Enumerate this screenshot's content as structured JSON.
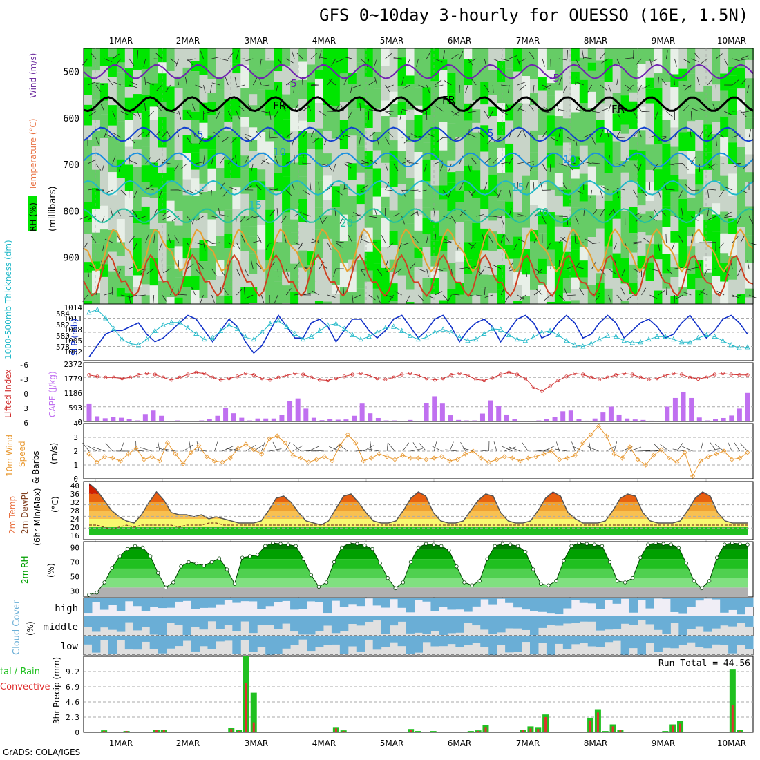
{
  "title": "GFS 0~10day 3-hourly for OUESSO (16E, 1.5N)",
  "credit": "GrADS: COLA/IGES",
  "colors": {
    "rh_green": "#00e600",
    "rh_mid": "#66cc66",
    "rh_light": "#c8d4c8",
    "slp": "#1030c8",
    "thickness": "#20b8c8",
    "lifted_index": "#d03030",
    "cape": "#c070f0",
    "wind10": "#e89830",
    "rh2m": "#00a000",
    "cloud": "#6aaed6",
    "precip_total": "#20c020",
    "precip_conv": "#e03030"
  },
  "chart_data": [
    {
      "type": "heatmap",
      "panel": "cross-section",
      "title": "GFS 0~10day 3-hourly for OUESSO (16E, 1.5N)",
      "ylabel_parts": [
        "RH (%)",
        "Temperature (°C)",
        "Wind (m/s)",
        "(millibars)"
      ],
      "x_labels": [
        "1MAR",
        "2MAR",
        "3MAR",
        "4MAR",
        "5MAR",
        "6MAR",
        "7MAR",
        "8MAR",
        "9MAR",
        "10MAR"
      ],
      "y_ticks": [
        500,
        600,
        700,
        800,
        900
      ],
      "ylim": [
        1000,
        450
      ],
      "isotherm_labels": [
        "-5",
        "-5",
        "FR",
        "FR",
        "FR",
        "5",
        "5",
        "10",
        "10",
        "15",
        "15",
        "20",
        "20"
      ],
      "isotherms": [
        {
          "label": "-5",
          "level": 500,
          "color": "#7020b0"
        },
        {
          "label": "FR",
          "level": 570,
          "color": "#000000"
        },
        {
          "label": "5",
          "level": 635,
          "color": "#1040d0"
        },
        {
          "label": "10",
          "level": 690,
          "color": "#1890e0"
        },
        {
          "label": "15",
          "level": 750,
          "color": "#20b8c8"
        },
        {
          "label": "20",
          "level": 810,
          "color": "#20c0a0"
        },
        {
          "label": "25",
          "level": 880,
          "color": "#e8a030"
        },
        {
          "label": "30",
          "level": 950,
          "color": "#d04020"
        }
      ]
    },
    {
      "type": "line",
      "panel": "slp-thickness",
      "ylabel_left": "1000-500mb Thickness (dm)",
      "ylabel_right": "SLP (mb)",
      "thickness_ticks": [
        "584",
        "582",
        "580",
        "578"
      ],
      "slp_ticks": [
        "1014",
        "1011",
        "1008",
        "1005",
        "1002"
      ],
      "slp": [
        1001,
        1004,
        1007,
        1008,
        1008,
        1009,
        1010,
        1007,
        1005,
        1006,
        1008,
        1010,
        1012,
        1011,
        1008,
        1005,
        1008,
        1011,
        1009,
        1005,
        1002,
        1004,
        1008,
        1012,
        1009,
        1006,
        1006,
        1010,
        1011,
        1009,
        1005,
        1008,
        1011,
        1011,
        1008,
        1006,
        1008,
        1011,
        1012,
        1009,
        1006,
        1008,
        1011,
        1012,
        1009,
        1005,
        1008,
        1010,
        1011,
        1009,
        1005,
        1008,
        1011,
        1012,
        1010,
        1006,
        1007,
        1010,
        1012,
        1010,
        1006,
        1007,
        1010,
        1012,
        1010,
        1006,
        1008,
        1010,
        1011,
        1009,
        1006,
        1007,
        1010,
        1012,
        1009,
        1006,
        1008,
        1011,
        1012,
        1010,
        1007
      ],
      "thickness": [
        583.8,
        584.2,
        583.0,
        581.5,
        580.0,
        579.4,
        579.2,
        580.0,
        581.2,
        582.0,
        582.4,
        582.4,
        581.6,
        580.8,
        580.0,
        580.2,
        581.2,
        582.0,
        581.5,
        580.3,
        580.0,
        581.0,
        582.2,
        582.6,
        581.8,
        580.8,
        580.0,
        580.4,
        581.2,
        582.0,
        582.2,
        581.5,
        580.6,
        580.0,
        580.4,
        581.0,
        581.6,
        581.8,
        581.2,
        580.5,
        580.0,
        580.3,
        581.0,
        581.4,
        581.0,
        580.3,
        579.8,
        580.0,
        580.8,
        581.5,
        581.4,
        580.6,
        580.0,
        579.8,
        580.3,
        581.0,
        581.2,
        580.6,
        579.8,
        579.2,
        579.0,
        579.4,
        580.0,
        580.5,
        580.4,
        579.8,
        579.5,
        579.6,
        580.0,
        580.4,
        580.4,
        580.0,
        579.6,
        579.6,
        580.2,
        580.6,
        580.4,
        579.8,
        579.2,
        578.8,
        578.9
      ]
    },
    {
      "type": "bar",
      "panel": "lifted-index-cape",
      "ylabel_left": "Lifted Index",
      "ylabel_right": "CAPE (J/kg)",
      "li_ticks": [
        "-6",
        "-3",
        "0",
        "3",
        "6"
      ],
      "cape_ticks": [
        "2372",
        "1779",
        "1186",
        "593",
        "0"
      ],
      "lifted_index": [
        -3.5,
        -3.2,
        -3.0,
        -3.0,
        -2.8,
        -3.0,
        -3.5,
        -3.8,
        -3.6,
        -3.0,
        -2.5,
        -3.0,
        -3.6,
        -4.0,
        -3.8,
        -3.0,
        -2.5,
        -2.8,
        -3.2,
        -3.8,
        -3.5,
        -2.8,
        -2.5,
        -3.0,
        -3.4,
        -3.8,
        -3.6,
        -3.0,
        -2.5,
        -2.4,
        -2.8,
        -3.2,
        -3.6,
        -3.8,
        -3.4,
        -2.8,
        -2.6,
        -3.0,
        -3.6,
        -3.8,
        -3.4,
        -2.8,
        -2.5,
        -2.8,
        -3.5,
        -3.8,
        -3.4,
        -2.6,
        -2.4,
        -2.9,
        -3.6,
        -4.0,
        -3.6,
        -2.8,
        -1.0,
        -0.2,
        -1.2,
        -2.4,
        -3.2,
        -3.8,
        -3.6,
        -3.0,
        -2.6,
        -3.0,
        -3.5,
        -3.8,
        -3.6,
        -3.0,
        -2.6,
        -2.8,
        -3.4,
        -3.8,
        -3.6,
        -3.0,
        -2.7,
        -3.0,
        -3.6,
        -3.8,
        -3.6,
        -3.5,
        -3.5
      ],
      "cape": [
        700,
        210,
        130,
        170,
        150,
        100,
        40,
        300,
        440,
        230,
        0,
        40,
        10,
        10,
        40,
        90,
        230,
        550,
        330,
        150,
        40,
        120,
        120,
        120,
        260,
        820,
        930,
        520,
        150,
        50,
        100,
        70,
        80,
        230,
        720,
        330,
        140,
        40,
        40,
        10,
        60,
        20,
        730,
        1020,
        720,
        250,
        60,
        40,
        40,
        320,
        850,
        620,
        280,
        90,
        0,
        10,
        40,
        90,
        190,
        410,
        440,
        100,
        30,
        120,
        360,
        600,
        280,
        120,
        80,
        60,
        30,
        0,
        600,
        950,
        1190,
        950,
        160,
        40,
        100,
        140,
        240,
        520,
        1150
      ],
      "cape_note": "CAPE bars given per 3-hour step in J/kg"
    },
    {
      "type": "line",
      "panel": "wind10m",
      "ylabel": "10m Wind Speed & Barbs (m/s)",
      "y_ticks": [
        "0",
        "1",
        "2",
        "3",
        "4"
      ],
      "ylim": [
        0,
        4
      ],
      "speed": [
        1.8,
        1.2,
        1.6,
        1.5,
        1.3,
        1.8,
        2.2,
        1.4,
        1.6,
        1.3,
        2.6,
        1.8,
        1.1,
        1.9,
        2.4,
        1.6,
        1.3,
        1.2,
        1.5,
        2.2,
        2.5,
        2.1,
        1.8,
        2.9,
        3.1,
        2.6,
        1.7,
        1.5,
        1.2,
        1.4,
        1.6,
        1.3,
        2.4,
        3.2,
        2.6,
        1.3,
        1.5,
        1.8,
        1.6,
        1.4,
        1.7,
        1.5,
        1.5,
        1.4,
        1.5,
        1.6,
        1.3,
        1.4,
        1.8,
        2.0,
        1.5,
        1.2,
        1.4,
        1.6,
        1.5,
        1.3,
        1.5,
        1.6,
        1.8,
        2.0,
        1.4,
        1.5,
        1.7,
        2.6,
        3.2,
        3.8,
        3.1,
        1.8,
        1.5,
        2.3,
        1.4,
        1.0,
        1.7,
        2.1,
        1.5,
        1.2,
        1.9,
        0.2,
        1.3,
        1.6,
        1.8,
        2.0,
        1.4,
        1.5,
        1.9
      ]
    },
    {
      "type": "area",
      "panel": "temp2m",
      "ylabel": "2m Temp 2m DewPt (6hr Min/Max) (°C)",
      "y_ticks": [
        "40",
        "36",
        "32",
        "28",
        "24",
        "20",
        "16"
      ],
      "ylim": [
        14,
        42
      ],
      "temp": [
        41,
        38,
        33,
        28,
        25,
        23,
        22,
        26,
        32,
        37,
        33,
        27,
        26,
        26,
        25,
        26,
        24,
        25,
        24,
        23,
        22,
        22,
        22,
        23,
        28,
        34,
        35,
        32,
        27,
        23,
        22,
        21,
        23,
        29,
        35,
        36,
        32,
        27,
        23,
        22,
        22,
        23,
        28,
        34,
        37,
        35,
        27,
        23,
        22,
        22,
        23,
        28,
        33,
        36,
        35,
        27,
        23,
        22,
        22,
        23,
        28,
        34,
        37,
        35,
        27,
        24,
        22,
        22,
        22,
        23,
        28,
        34,
        36,
        35,
        27,
        23,
        22,
        22,
        22,
        23,
        28,
        34,
        37,
        35,
        27,
        23,
        22,
        22,
        22
      ],
      "dewpt": [
        21,
        21,
        20,
        19,
        20,
        21,
        20,
        21,
        21,
        21,
        21,
        21,
        20,
        21,
        21,
        21,
        22,
        22,
        21,
        21,
        21,
        21,
        21,
        21,
        21,
        21,
        21,
        21,
        21,
        21,
        21,
        21,
        21,
        21,
        21,
        21,
        21,
        21,
        21,
        21,
        21,
        21,
        21,
        21,
        21,
        21,
        21,
        21,
        21,
        21,
        21,
        21,
        21,
        21,
        21,
        21,
        21,
        21,
        21,
        21,
        21,
        21,
        21,
        21,
        21,
        21,
        21,
        21,
        21,
        21,
        21,
        21,
        21,
        21,
        21,
        21,
        21,
        21,
        21,
        21,
        21,
        21,
        21,
        21,
        21,
        21,
        21,
        21,
        21
      ]
    },
    {
      "type": "area",
      "panel": "rh2m",
      "ylabel": "2m RH (%)",
      "y_ticks": [
        "90",
        "70",
        "50",
        "30"
      ],
      "ylim": [
        22,
        98
      ],
      "rh": [
        25,
        28,
        42,
        62,
        78,
        88,
        92,
        90,
        78,
        55,
        35,
        42,
        64,
        70,
        68,
        65,
        70,
        75,
        60,
        40,
        76,
        78,
        80,
        92,
        96,
        95,
        94,
        92,
        74,
        52,
        36,
        42,
        70,
        90,
        96,
        95,
        93,
        88,
        68,
        48,
        34,
        42,
        70,
        90,
        95,
        94,
        92,
        86,
        64,
        42,
        38,
        44,
        74,
        92,
        95,
        94,
        92,
        84,
        60,
        40,
        38,
        44,
        72,
        92,
        96,
        95,
        94,
        92,
        70,
        44,
        42,
        48,
        76,
        94,
        96,
        95,
        94,
        90,
        68,
        44,
        34,
        44,
        76,
        94,
        96,
        95,
        94
      ]
    },
    {
      "type": "heatmap",
      "panel": "cloud-cover",
      "ylabel": "Cloud Cover (%)",
      "layers": [
        "high",
        "middle",
        "low"
      ]
    },
    {
      "type": "bar",
      "panel": "precip",
      "ylabel_left": "Total / Rain Convective",
      "ylabel": "3hr Precip (mm)",
      "run_total": "Run Total = 44.56",
      "y_ticks": [
        "9.2",
        "6.9",
        "4.6",
        "2.3",
        "0"
      ],
      "ylim": [
        0,
        11.5
      ],
      "x_labels": [
        "1MAR",
        "2MAR",
        "3MAR",
        "4MAR",
        "5MAR",
        "6MAR",
        "7MAR",
        "8MAR",
        "9MAR",
        "10MAR"
      ],
      "total": [
        0,
        0.1,
        0.3,
        0,
        0,
        0.2,
        0,
        0,
        0,
        0.4,
        0.4,
        0,
        0,
        0,
        0,
        0,
        0,
        0,
        0,
        0.7,
        0.4,
        11.5,
        6.0,
        0,
        0,
        0,
        0,
        0,
        0,
        0,
        0.1,
        0,
        0,
        0.8,
        0.3,
        0,
        0,
        0,
        0,
        0,
        0,
        0,
        0,
        0.5,
        0.2,
        0,
        0.2,
        0,
        0,
        0,
        0,
        0.2,
        0.3,
        1.1,
        0,
        0,
        0,
        0,
        0.4,
        0.9,
        0.8,
        2.7,
        0,
        0,
        0,
        0,
        0,
        2.2,
        3.5,
        0.2,
        1.2,
        0.4,
        0,
        0.1,
        0.1,
        0,
        0.1,
        0.2,
        1.2,
        1.7,
        0,
        0,
        0,
        0,
        0,
        0,
        9.5,
        0.4,
        0
      ],
      "convective": [
        0,
        0.1,
        0.2,
        0,
        0,
        0.2,
        0,
        0,
        0,
        0.3,
        0.3,
        0,
        0,
        0,
        0,
        0,
        0,
        0,
        0,
        0.5,
        0.2,
        7.5,
        1.5,
        0,
        0,
        0,
        0,
        0,
        0,
        0,
        0.1,
        0,
        0,
        0.6,
        0.2,
        0,
        0,
        0,
        0,
        0,
        0,
        0,
        0,
        0.4,
        0.1,
        0,
        0.1,
        0,
        0,
        0,
        0,
        0.1,
        0.2,
        0.8,
        0,
        0,
        0,
        0,
        0.3,
        0.6,
        0.5,
        2.3,
        0,
        0,
        0,
        0,
        0,
        1.8,
        3.0,
        0.1,
        0.9,
        0.3,
        0,
        0.1,
        0.1,
        0,
        0.1,
        0.1,
        1.0,
        1.3,
        0,
        0,
        0,
        0,
        0,
        0,
        4.1,
        0.2,
        0
      ]
    }
  ]
}
